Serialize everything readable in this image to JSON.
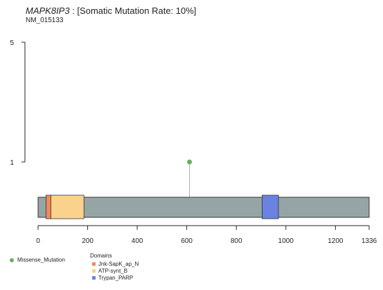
{
  "header": {
    "gene": "MAPK8IP3",
    "rate_text": " : [Somatic Mutation Rate: 10%]",
    "transcript": "NM_015133"
  },
  "chart_data": {
    "type": "lollipop",
    "protein_length": 1336,
    "x_ticks": [
      0,
      200,
      400,
      600,
      800,
      1000,
      1200,
      1336
    ],
    "y_ticks": [
      1,
      5
    ],
    "y_range": [
      0,
      5
    ],
    "backbone_color": "#95a5a5",
    "mutations": [
      {
        "position": 611,
        "count": 1,
        "type": "Missense_Mutation",
        "color": "#6aae5f"
      }
    ],
    "domains": [
      {
        "name": "ATP-synt_B",
        "start": 50,
        "end": 185,
        "color": "#fad28c"
      },
      {
        "name": "Jnk-SapK_ap_N",
        "start": 32,
        "end": 52,
        "color": "#f08a5d"
      },
      {
        "name": "Trypan_PARP",
        "start": 904,
        "end": 970,
        "color": "#6a82e0"
      }
    ]
  },
  "legend": {
    "mutation_label": "Missense_Mutation",
    "domains_title": "Domains",
    "domain_items": [
      {
        "label": "Jnk-SapK_ap_N",
        "color": "#f08a5d"
      },
      {
        "label": "ATP-synt_B",
        "color": "#fad28c"
      },
      {
        "label": "Trypan_PARP",
        "color": "#6a82e0"
      }
    ]
  }
}
